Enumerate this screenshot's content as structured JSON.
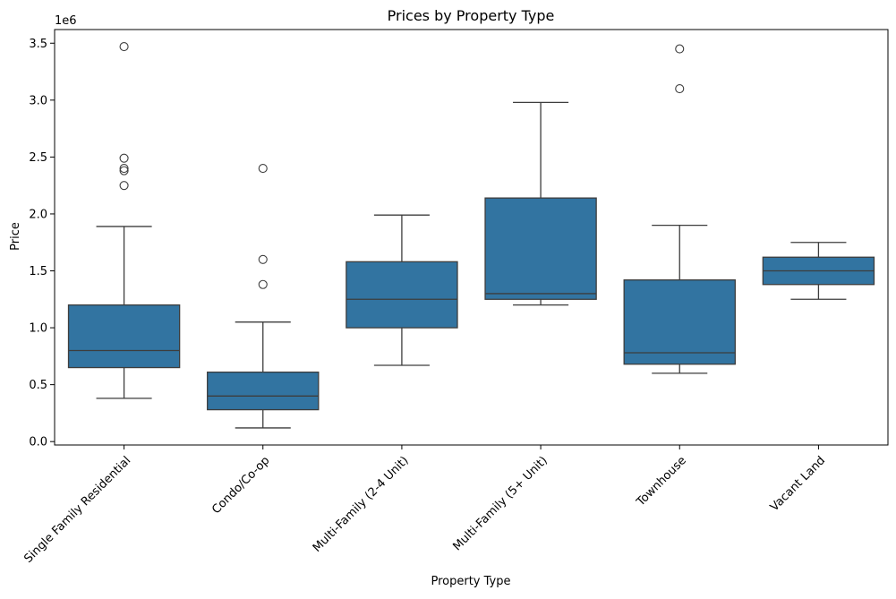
{
  "chart_data": {
    "type": "box",
    "title": "Prices by Property Type",
    "xlabel": "Property Type",
    "ylabel": "Price",
    "scale_label": "1e6",
    "ylim": [
      -0.03,
      3.62
    ],
    "y_ticks": [
      0.0,
      0.5,
      1.0,
      1.5,
      2.0,
      2.5,
      3.0,
      3.5
    ],
    "y_tick_labels": [
      "0.0",
      "0.5",
      "1.0",
      "1.5",
      "2.0",
      "2.5",
      "3.0",
      "3.5"
    ],
    "box_color": "#3274a1",
    "line_color": "#3d3d3d",
    "grid": false,
    "categories": [
      "Single Family Residential",
      "Condo/Co-op",
      "Multi-Family (2-4 Unit)",
      "Multi-Family (5+ Unit)",
      "Townhouse",
      "Vacant Land"
    ],
    "boxes": [
      {
        "category": "Single Family Residential",
        "whisker_low": 0.38,
        "q1": 0.65,
        "median": 0.8,
        "q3": 1.2,
        "whisker_high": 1.89,
        "outliers": [
          2.25,
          2.38,
          2.4,
          2.49,
          3.47
        ]
      },
      {
        "category": "Condo/Co-op",
        "whisker_low": 0.12,
        "q1": 0.28,
        "median": 0.4,
        "q3": 0.61,
        "whisker_high": 1.05,
        "outliers": [
          1.38,
          1.6,
          2.4
        ]
      },
      {
        "category": "Multi-Family (2-4 Unit)",
        "whisker_low": 0.67,
        "q1": 1.0,
        "median": 1.25,
        "q3": 1.58,
        "whisker_high": 1.99,
        "outliers": []
      },
      {
        "category": "Multi-Family (5+ Unit)",
        "whisker_low": 1.2,
        "q1": 1.25,
        "median": 1.3,
        "q3": 2.14,
        "whisker_high": 2.98,
        "outliers": []
      },
      {
        "category": "Townhouse",
        "whisker_low": 0.6,
        "q1": 0.68,
        "median": 0.78,
        "q3": 1.42,
        "whisker_high": 1.9,
        "outliers": [
          3.1,
          3.45
        ]
      },
      {
        "category": "Vacant Land",
        "whisker_low": 1.25,
        "q1": 1.38,
        "median": 1.5,
        "q3": 1.62,
        "whisker_high": 1.75,
        "outliers": []
      }
    ]
  }
}
